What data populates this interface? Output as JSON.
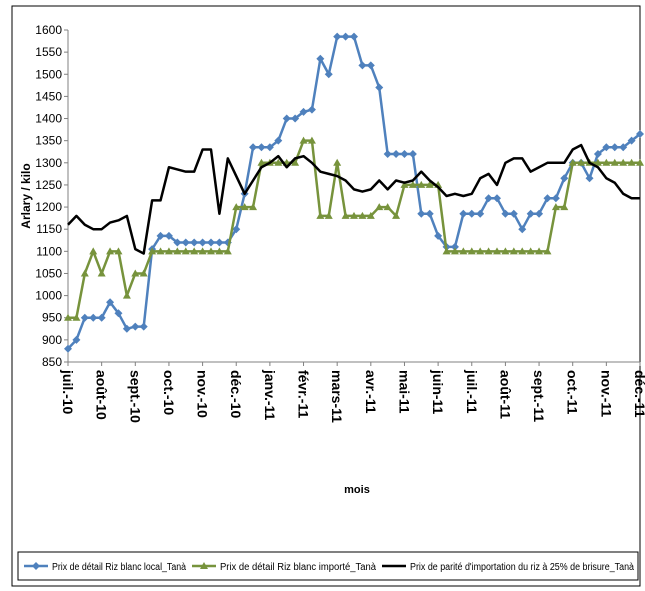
{
  "chart_data": {
    "type": "line",
    "y_label": "Arlary / kilo",
    "x_label": "mois",
    "xlim": [
      0,
      17
    ],
    "xticks": [
      {
        "value": 0,
        "label": "juil.-10"
      },
      {
        "value": 1,
        "label": "août-10"
      },
      {
        "value": 2,
        "label": "sept.-10"
      },
      {
        "value": 3,
        "label": "oct.-10"
      },
      {
        "value": 4,
        "label": "nov.-10"
      },
      {
        "value": 5,
        "label": "déc.-10"
      },
      {
        "value": 6,
        "label": "janv.-11"
      },
      {
        "value": 7,
        "label": "févr.-11"
      },
      {
        "value": 8,
        "label": "mars-11"
      },
      {
        "value": 9,
        "label": "avr.-11"
      },
      {
        "value": 10,
        "label": "mai-11"
      },
      {
        "value": 11,
        "label": "juin-11"
      },
      {
        "value": 12,
        "label": "juil.-11"
      },
      {
        "value": 13,
        "label": "août-11"
      },
      {
        "value": 14,
        "label": "sept.-11"
      },
      {
        "value": 15,
        "label": "oct.-11"
      },
      {
        "value": 16,
        "label": "nov.-11"
      },
      {
        "value": 17,
        "label": "déc.-11"
      }
    ],
    "ylim": [
      850,
      1600
    ],
    "yticks": [
      850,
      900,
      950,
      1000,
      1050,
      1100,
      1150,
      1200,
      1250,
      1300,
      1350,
      1400,
      1450,
      1500,
      1550,
      1600
    ],
    "x": [
      0,
      0.25,
      0.5,
      0.75,
      1,
      1.25,
      1.5,
      1.75,
      2,
      2.25,
      2.5,
      2.75,
      3,
      3.25,
      3.5,
      3.75,
      4,
      4.25,
      4.5,
      4.75,
      5,
      5.25,
      5.5,
      5.75,
      6,
      6.25,
      6.5,
      6.75,
      7,
      7.25,
      7.5,
      7.75,
      8,
      8.25,
      8.5,
      8.75,
      9,
      9.25,
      9.5,
      9.75,
      10,
      10.25,
      10.5,
      10.75,
      11,
      11.25,
      11.5,
      11.75,
      12,
      12.25,
      12.5,
      12.75,
      13,
      13.25,
      13.5,
      13.75,
      14,
      14.25,
      14.5,
      14.75,
      15,
      15.25,
      15.5,
      15.75,
      16,
      16.25,
      16.5,
      16.75,
      17
    ],
    "series": [
      {
        "name": "Prix de détail Riz blanc local_Tanà",
        "color": "#4f81bd",
        "marker": "diamond",
        "values": [
          880,
          900,
          950,
          950,
          950,
          985,
          960,
          925,
          930,
          930,
          1105,
          1135,
          1135,
          1120,
          1120,
          1120,
          1120,
          1120,
          1120,
          1120,
          1150,
          1230,
          1335,
          1335,
          1335,
          1350,
          1400,
          1400,
          1415,
          1420,
          1535,
          1500,
          1585,
          1585,
          1585,
          1520,
          1520,
          1470,
          1320,
          1320,
          1320,
          1320,
          1185,
          1185,
          1135,
          1110,
          1110,
          1185,
          1185,
          1185,
          1220,
          1220,
          1185,
          1185,
          1150,
          1185,
          1185,
          1220,
          1220,
          1265,
          1300,
          1300,
          1265,
          1320,
          1335,
          1335,
          1335,
          1350,
          1365
        ]
      },
      {
        "name": "Prix de détail Riz blanc importé_Tanà",
        "color": "#77933c",
        "marker": "triangle",
        "values": [
          950,
          950,
          1050,
          1100,
          1050,
          1100,
          1100,
          1000,
          1050,
          1050,
          1100,
          1100,
          1100,
          1100,
          1100,
          1100,
          1100,
          1100,
          1100,
          1100,
          1200,
          1200,
          1200,
          1300,
          1300,
          1300,
          1300,
          1300,
          1350,
          1350,
          1180,
          1180,
          1300,
          1180,
          1180,
          1180,
          1180,
          1200,
          1200,
          1180,
          1250,
          1250,
          1250,
          1250,
          1250,
          1100,
          1100,
          1100,
          1100,
          1100,
          1100,
          1100,
          1100,
          1100,
          1100,
          1100,
          1100,
          1100,
          1200,
          1200,
          1300,
          1300,
          1300,
          1300,
          1300,
          1300,
          1300,
          1300,
          1300
        ]
      },
      {
        "name": "Prix de parité d'importation du riz à 25% de brisure_Tanà",
        "color": "#000000",
        "marker": "none",
        "values": [
          1160,
          1180,
          1160,
          1150,
          1150,
          1165,
          1170,
          1180,
          1105,
          1095,
          1215,
          1215,
          1290,
          1285,
          1280,
          1280,
          1330,
          1330,
          1185,
          1310,
          1270,
          1230,
          1260,
          1290,
          1300,
          1315,
          1290,
          1310,
          1315,
          1300,
          1280,
          1275,
          1270,
          1260,
          1240,
          1235,
          1240,
          1260,
          1240,
          1260,
          1255,
          1260,
          1280,
          1260,
          1245,
          1225,
          1230,
          1225,
          1230,
          1265,
          1275,
          1250,
          1300,
          1310,
          1310,
          1280,
          1290,
          1300,
          1300,
          1300,
          1330,
          1340,
          1300,
          1290,
          1265,
          1255,
          1230,
          1220,
          1220
        ]
      }
    ]
  }
}
